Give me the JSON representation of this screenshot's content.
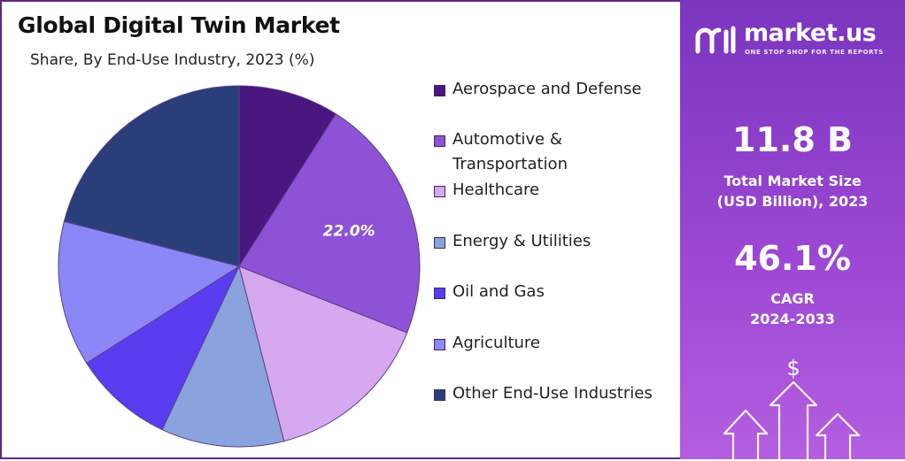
{
  "left": {
    "title": "Global Digital Twin Market",
    "subtitle": "Share, By End-Use Industry, 2023 (%)"
  },
  "chart_data": {
    "type": "pie",
    "title": "Global Digital Twin Market",
    "subtitle": "Share, By End-Use Industry, 2023 (%)",
    "legend_position": "right",
    "slices": [
      {
        "name": "Aerospace and Defense",
        "value": 9.0,
        "color": "#4a1680"
      },
      {
        "name": "Automotive & Transportation",
        "value": 22.0,
        "color": "#8e52d6",
        "label": "22.0%"
      },
      {
        "name": "Healthcare",
        "value": 15.0,
        "color": "#d5a8ef"
      },
      {
        "name": "Energy & Utilities",
        "value": 11.0,
        "color": "#8ba3dc"
      },
      {
        "name": "Oil and Gas",
        "value": 9.0,
        "color": "#5a3cf0"
      },
      {
        "name": "Agriculture",
        "value": 13.0,
        "color": "#8c86f6"
      },
      {
        "name": "Other End-Use Industries",
        "value": 21.0,
        "color": "#2a3f7a"
      }
    ]
  },
  "legend": {
    "items": [
      {
        "lines": [
          "Aerospace and Defense"
        ],
        "color": "#4a1680"
      },
      {
        "lines": [
          "Automotive &",
          "Transportation"
        ],
        "color": "#8e52d6"
      },
      {
        "lines": [
          "Healthcare"
        ],
        "color": "#d5a8ef"
      },
      {
        "lines": [
          "Energy & Utilities"
        ],
        "color": "#8ba3dc"
      },
      {
        "lines": [
          "Oil and Gas"
        ],
        "color": "#5a3cf0"
      },
      {
        "lines": [
          "Agriculture"
        ],
        "color": "#8c86f6"
      },
      {
        "lines": [
          "Other End-Use Industries"
        ],
        "color": "#2a3f7a"
      }
    ]
  },
  "brand": {
    "name": "market.us",
    "tagline": "ONE STOP SHOP FOR THE REPORTS",
    "logo_icon": "market-us-logo-icon"
  },
  "stats": {
    "market_size_value": "11.8 B",
    "market_size_label_1": "Total Market Size",
    "market_size_label_2": "(USD Billion), 2023",
    "cagr_value": "46.1%",
    "cagr_label_1": "CAGR",
    "cagr_label_2": "2024-2033"
  },
  "decor": {
    "currency_symbol": "$",
    "icon": "growth-arrows-icon"
  }
}
